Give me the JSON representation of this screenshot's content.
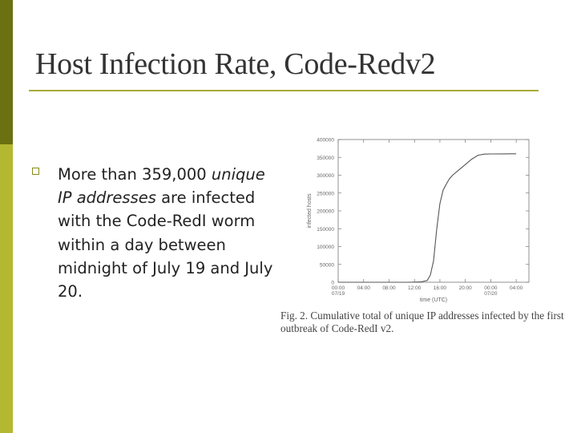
{
  "slide": {
    "title": "Host Infection Rate, Code-Redv2",
    "bullet": {
      "text_before": "More than 359,000 ",
      "text_italic": "unique IP addresses",
      "text_after": " are infected with the Code-RedI worm within a day between midnight of July 19 and July 20."
    },
    "caption": "Fig. 2.  Cumulative total of unique IP addresses infected by the first outbreak of Code-RedI v2.",
    "colors": {
      "dark_bar": "#6b7010",
      "light_bar": "#b4b830",
      "rule": "#a9ab3a",
      "bullet": "#8a8a1a"
    }
  },
  "chart_data": {
    "type": "line",
    "title": "",
    "xlabel": "time (UTC)",
    "ylabel": "infected hosts",
    "x_ticks": [
      "00:00\n07/19",
      "04:00",
      "08:00",
      "12:00",
      "16:00",
      "20:00",
      "00:00\n07/20",
      "04:00"
    ],
    "y_ticks": [
      "0",
      "50000",
      "100000",
      "150000",
      "200000",
      "250000",
      "300000",
      "350000",
      "400000"
    ],
    "xlim": [
      0,
      30
    ],
    "ylim": [
      0,
      400000
    ],
    "grid": false,
    "legend": "none",
    "series": [
      {
        "x": [
          0,
          11,
          13,
          14,
          14.5,
          15,
          15.5,
          16,
          16.5,
          17,
          17.5,
          18,
          19,
          20,
          21,
          22,
          23,
          24,
          26,
          28
        ],
        "values": [
          0,
          0,
          1000,
          5000,
          20000,
          60000,
          150000,
          220000,
          258000,
          275000,
          290000,
          300000,
          315000,
          330000,
          345000,
          356000,
          359000,
          359500,
          359800,
          360000
        ]
      }
    ]
  }
}
